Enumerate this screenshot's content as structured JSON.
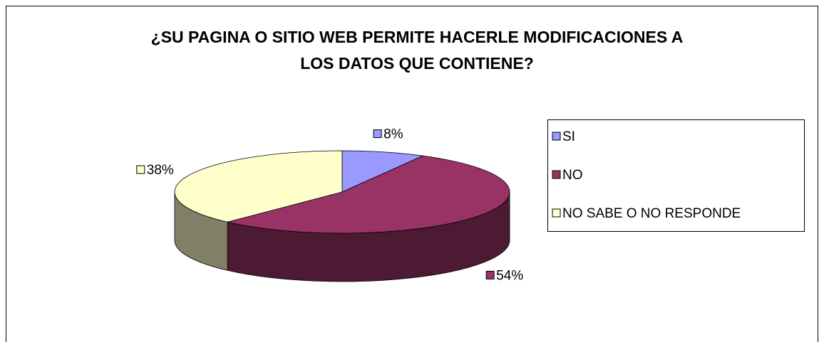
{
  "chart_data": {
    "type": "pie",
    "title": "¿SU PAGINA O SITIO WEB PERMITE HACERLE MODIFICACIONES A LOS DATOS QUE CONTIENE?",
    "categories": [
      "SI",
      "NO",
      "NO SABE O NO RESPONDE"
    ],
    "values": [
      8,
      54,
      38
    ],
    "value_labels": [
      "8%",
      "54%",
      "38%"
    ],
    "colors": [
      "#9999ff",
      "#993366",
      "#ffffcc"
    ],
    "legend": "right"
  }
}
